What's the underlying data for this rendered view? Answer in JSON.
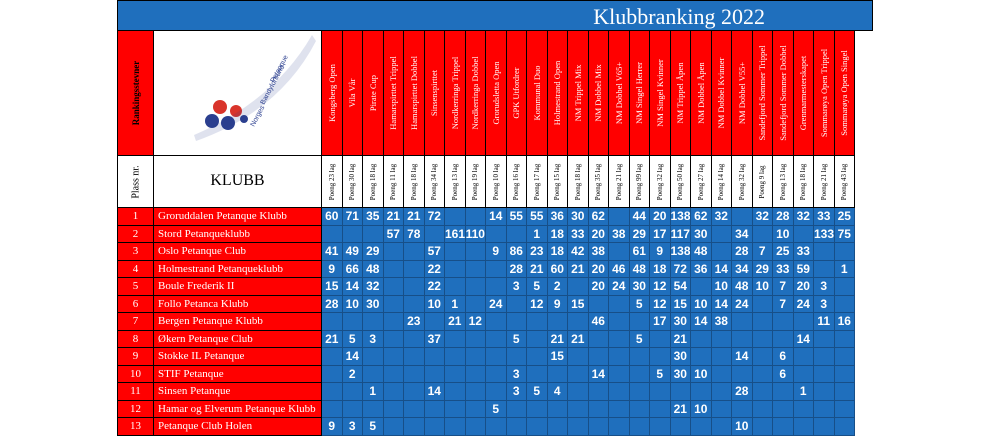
{
  "title": "Klubbranking 2022",
  "side_header": "Rankingsstevner",
  "plass_label": "Plass nr.",
  "klubb_label": "KLUBB",
  "logo": {
    "text_lines": [
      "Norges",
      "Bandyforbund",
      "Petanque"
    ],
    "colors": [
      "#d9342b",
      "#2b3f8f",
      "#ffffff"
    ]
  },
  "events": [
    {
      "name": "Kongsberg Open",
      "points": "Poeng 23 lag"
    },
    {
      "name": "Vila Vår",
      "points": "Poeng 30 lag"
    },
    {
      "name": "Pirate Cup",
      "points": "Poeng 18 lag"
    },
    {
      "name": "Hamarspirttet Trippel",
      "points": "Poeng 11 lag"
    },
    {
      "name": "Hamarspirttet Dobbel",
      "points": "Poeng 18 lag"
    },
    {
      "name": "Sinsenspirttet",
      "points": "Poeng 34 lag"
    },
    {
      "name": "Nordkerringa Trippel",
      "points": "Poeng 13 lag"
    },
    {
      "name": "Nordkerringa Dobbel",
      "points": "Poeng 19 lag"
    },
    {
      "name": "Grorudsletta Open",
      "points": "Poeng 10 lag"
    },
    {
      "name": "GPK Utfordrer",
      "points": "Poeng 16 lag"
    },
    {
      "name": "Kommunal Duo",
      "points": "Poeng 17 lag"
    },
    {
      "name": "Holmestrand Open",
      "points": "Poeng 15 lag"
    },
    {
      "name": "NM Trippel Mix",
      "points": "Poeng 18 lag"
    },
    {
      "name": "NM Dobbel Mix",
      "points": "Poeng 35 lag"
    },
    {
      "name": "NM Dobbel V65+",
      "points": "Poeng 21 lag"
    },
    {
      "name": "NM Singel Herrer",
      "points": "Poeng 99 lag"
    },
    {
      "name": "NM Singel Kvinner",
      "points": "Poeng 32 lag"
    },
    {
      "name": "NM Trippel Åpen",
      "points": "Poeng 50 lag"
    },
    {
      "name": "NM Dobbel Åpen",
      "points": "Poeng 27 lag"
    },
    {
      "name": "NM Dobbel Kvinner",
      "points": "Poeng 14 lag"
    },
    {
      "name": "NM Dobbel V55+",
      "points": "Poeng 32 lag"
    },
    {
      "name": "Sandefjord Sommer Trippel",
      "points": "Poeng 9 lag"
    },
    {
      "name": "Sandefjord Sommer Dobbel",
      "points": "Poeng 13 lag"
    },
    {
      "name": "Grenmarmesterskapet",
      "points": "Poeng 18 lag"
    },
    {
      "name": "Sommarøya Open Trippel",
      "points": "Poeng 21 lag"
    },
    {
      "name": "Sommarøya Open Singel",
      "points": "Poeng 43 lag"
    }
  ],
  "clubs": [
    {
      "rank": "1",
      "name": "Groruddalen Petanque Klubb",
      "scores": [
        "60",
        "71",
        "35",
        "21",
        "21",
        "72",
        "",
        "",
        "14",
        "55",
        "55",
        "36",
        "30",
        "62",
        "",
        "44",
        "20",
        "138",
        "62",
        "32",
        "",
        "32",
        "28",
        "32",
        "33",
        "25"
      ]
    },
    {
      "rank": "2",
      "name": "Stord Petanqueklubb",
      "scores": [
        "",
        "",
        "",
        "57",
        "78",
        "",
        "161",
        "110",
        "",
        "",
        "1",
        "18",
        "33",
        "20",
        "38",
        "29",
        "17",
        "117",
        "30",
        "",
        "34",
        "",
        "10",
        "",
        "133",
        "75"
      ]
    },
    {
      "rank": "3",
      "name": "Oslo Petanque Club",
      "scores": [
        "41",
        "49",
        "29",
        "",
        "",
        "57",
        "",
        "",
        "9",
        "86",
        "23",
        "18",
        "42",
        "38",
        "",
        "61",
        "9",
        "138",
        "48",
        "",
        "28",
        "7",
        "25",
        "33",
        "",
        ""
      ]
    },
    {
      "rank": "4",
      "name": "Holmestrand Petanqueklubb",
      "scores": [
        "9",
        "66",
        "48",
        "",
        "",
        "22",
        "",
        "",
        "",
        "28",
        "21",
        "60",
        "21",
        "20",
        "46",
        "48",
        "18",
        "72",
        "36",
        "14",
        "34",
        "29",
        "33",
        "59",
        "",
        "1"
      ]
    },
    {
      "rank": "5",
      "name": "Boule Frederik II",
      "scores": [
        "15",
        "14",
        "32",
        "",
        "",
        "22",
        "",
        "",
        "",
        "3",
        "5",
        "2",
        "",
        "20",
        "24",
        "30",
        "12",
        "54",
        "",
        "10",
        "48",
        "10",
        "7",
        "20",
        "3",
        ""
      ]
    },
    {
      "rank": "6",
      "name": "Follo Petanca Klubb",
      "scores": [
        "28",
        "10",
        "30",
        "",
        "",
        "10",
        "1",
        "",
        "24",
        "",
        "12",
        "9",
        "15",
        "",
        "",
        "5",
        "12",
        "15",
        "10",
        "14",
        "24",
        "",
        "7",
        "24",
        "3",
        ""
      ]
    },
    {
      "rank": "7",
      "name": "Bergen Petanque Klubb",
      "scores": [
        "",
        "",
        "",
        "",
        "23",
        "",
        "21",
        "12",
        "",
        "",
        "",
        "",
        "",
        "46",
        "",
        "",
        "17",
        "30",
        "14",
        "38",
        "",
        "",
        "",
        "",
        "11",
        "16"
      ]
    },
    {
      "rank": "8",
      "name": "Økern Petanque Club",
      "scores": [
        "21",
        "5",
        "3",
        "",
        "",
        "37",
        "",
        "",
        "",
        "5",
        "",
        "21",
        "21",
        "",
        "",
        "5",
        "",
        "21",
        "",
        "",
        "",
        "",
        "",
        "14",
        "",
        ""
      ]
    },
    {
      "rank": "9",
      "name": "Stokke IL Petanque",
      "scores": [
        "",
        "14",
        "",
        "",
        "",
        "",
        "",
        "",
        "",
        "",
        "",
        "15",
        "",
        "",
        "",
        "",
        "",
        "30",
        "",
        "",
        "14",
        "",
        "6",
        "",
        "",
        ""
      ]
    },
    {
      "rank": "10",
      "name": "STIF Petanque",
      "scores": [
        "",
        "2",
        "",
        "",
        "",
        "",
        "",
        "",
        "",
        "3",
        "",
        "",
        "",
        "14",
        "",
        "",
        "5",
        "30",
        "10",
        "",
        "",
        "",
        "6",
        "",
        "",
        ""
      ]
    },
    {
      "rank": "11",
      "name": "Sinsen Petanque",
      "scores": [
        "",
        "",
        "1",
        "",
        "",
        "14",
        "",
        "",
        "",
        "3",
        "5",
        "4",
        "",
        "",
        "",
        "",
        "",
        "",
        "",
        "",
        "28",
        "",
        "",
        "1",
        "",
        ""
      ]
    },
    {
      "rank": "12",
      "name": "Hamar og Elverum Petanque Klubb",
      "scores": [
        "",
        "",
        "",
        "",
        "",
        "",
        "",
        "",
        "5",
        "",
        "",
        "",
        "",
        "",
        "",
        "",
        "",
        "21",
        "10",
        "",
        "",
        "",
        "",
        "",
        "",
        ""
      ]
    },
    {
      "rank": "13",
      "name": "Petanque Club Holen",
      "scores": [
        "9",
        "3",
        "5",
        "",
        "",
        "",
        "",
        "",
        "",
        "",
        "",
        "",
        "",
        "",
        "",
        "",
        "",
        "",
        "",
        "",
        "10",
        "",
        "",
        "",
        "",
        ""
      ]
    }
  ]
}
